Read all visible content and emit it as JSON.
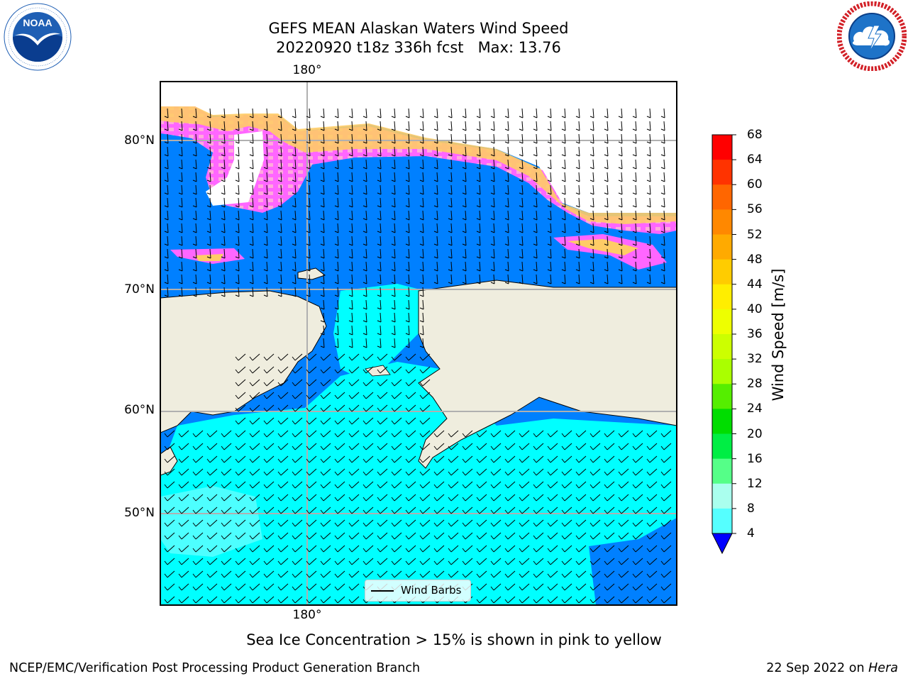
{
  "header": {
    "title_line1": "GEFS MEAN Alaskan Waters Wind Speed",
    "title_line2": "20220920 t18z 336h fcst   Max: 13.76"
  },
  "logos": {
    "left": {
      "name": "NOAA",
      "ring_text": "NATIONAL OCEANIC AND ATMOSPHERIC ADMINISTRATION · U.S. DEPARTMENT OF COMMERCE",
      "colors": {
        "ring": "#ffffff",
        "sky": "#1f5fb4",
        "ocean": "#0a3d8f",
        "bird": "#ffffff"
      }
    },
    "right": {
      "name": "NATIONAL WEATHER SERVICE",
      "colors": {
        "ring_text": "#d22027",
        "disc": "#1e73c8",
        "cloud": "#ffffff",
        "bolt": "#ffffff"
      }
    }
  },
  "map": {
    "lat_labels": [
      "80°N",
      "70°N",
      "60°N",
      "50°N"
    ],
    "lon_labels": {
      "top": "180°",
      "bottom": "180°"
    },
    "legend_label": "Wind Barbs",
    "colors": {
      "land": "#efedde",
      "ocean_low": "#0080ff",
      "ocean_mid": "#00ffff",
      "ocean_high": "#4dffff",
      "ice_pink": "#ff66ff",
      "ice_yellow": "#ffd966",
      "ice_orange": "#ffaa66",
      "grid": "#b0b0b0"
    }
  },
  "colorbar": {
    "label": "Wind Speed [m/s]",
    "ticks": [
      "68",
      "64",
      "60",
      "56",
      "52",
      "48",
      "44",
      "40",
      "36",
      "32",
      "28",
      "24",
      "20",
      "16",
      "12",
      "8",
      "4"
    ],
    "colors": [
      "#ff0000",
      "#ff3300",
      "#ff6600",
      "#ff8800",
      "#ffaa00",
      "#ffcc00",
      "#ffee00",
      "#eeff00",
      "#ccff00",
      "#aaff00",
      "#55ee00",
      "#00dd00",
      "#00ee44",
      "#55ff88",
      "#aaffee",
      "#55ffff",
      "#00ffff",
      "#0080ff"
    ],
    "extend_color": "#0000ff"
  },
  "footer": {
    "note": "Sea Ice Concentration > 15% is shown in pink to yellow",
    "left": "NCEP/EMC/Verification Post Processing Product Generation Branch",
    "right_date": "22 Sep 2022 on",
    "right_machine": "Hera"
  }
}
